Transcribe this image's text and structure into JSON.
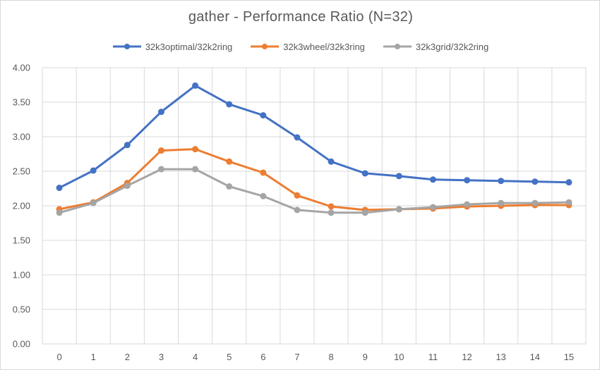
{
  "chart_data": {
    "type": "line",
    "title": "gather - Performance Ratio (N=32)",
    "xlabel": "",
    "ylabel": "",
    "categories": [
      "0",
      "1",
      "2",
      "3",
      "4",
      "5",
      "6",
      "7",
      "8",
      "9",
      "10",
      "11",
      "12",
      "13",
      "14",
      "15"
    ],
    "ylim": [
      0,
      4
    ],
    "yticks": [
      "0.00",
      "0.50",
      "1.00",
      "1.50",
      "2.00",
      "2.50",
      "3.00",
      "3.50",
      "4.00"
    ],
    "grid": true,
    "legend_position": "top",
    "series": [
      {
        "name": "32k3optimal/32k2ring",
        "color": "#4472c4",
        "values": [
          2.26,
          2.51,
          2.88,
          3.36,
          3.74,
          3.47,
          3.31,
          2.99,
          2.64,
          2.47,
          2.43,
          2.38,
          2.37,
          2.36,
          2.35,
          2.34
        ]
      },
      {
        "name": "32k3wheel/32k3ring",
        "color": "#ed7d31",
        "values": [
          1.95,
          2.05,
          2.33,
          2.8,
          2.82,
          2.64,
          2.48,
          2.15,
          1.99,
          1.94,
          1.95,
          1.96,
          1.99,
          2.0,
          2.01,
          2.01
        ]
      },
      {
        "name": "32k3grid/32k2ring",
        "color": "#a5a5a5",
        "values": [
          1.9,
          2.04,
          2.29,
          2.53,
          2.53,
          2.28,
          2.14,
          1.94,
          1.9,
          1.9,
          1.95,
          1.98,
          2.02,
          2.04,
          2.04,
          2.05
        ]
      }
    ]
  }
}
